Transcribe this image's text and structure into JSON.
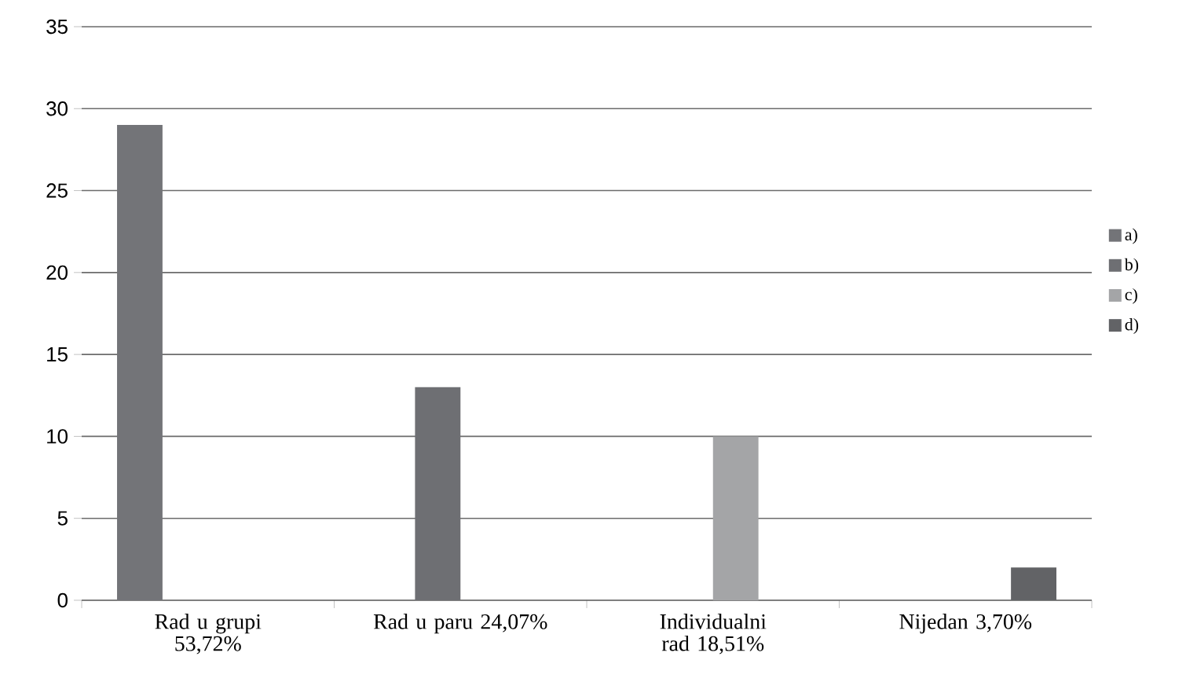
{
  "chart_data": {
    "type": "bar",
    "categories": [
      "Rad u grupi 53,72%",
      "Rad u paru 24,07%",
      "Individualni rad 18,51%",
      "Nijedan 3,70%"
    ],
    "series": [
      {
        "name": "a)",
        "color": "#737478",
        "values": [
          29,
          null,
          null,
          null
        ]
      },
      {
        "name": "b)",
        "color": "#6e6f73",
        "values": [
          null,
          13,
          null,
          null
        ]
      },
      {
        "name": "c)",
        "color": "#a4a5a7",
        "values": [
          null,
          null,
          10,
          null
        ]
      },
      {
        "name": "d)",
        "color": "#626366",
        "values": [
          null,
          null,
          null,
          2
        ]
      }
    ],
    "ylim": [
      0,
      35
    ],
    "yticks": [
      0,
      5,
      10,
      15,
      20,
      25,
      30,
      35
    ],
    "grid": "y",
    "legend": "right"
  }
}
